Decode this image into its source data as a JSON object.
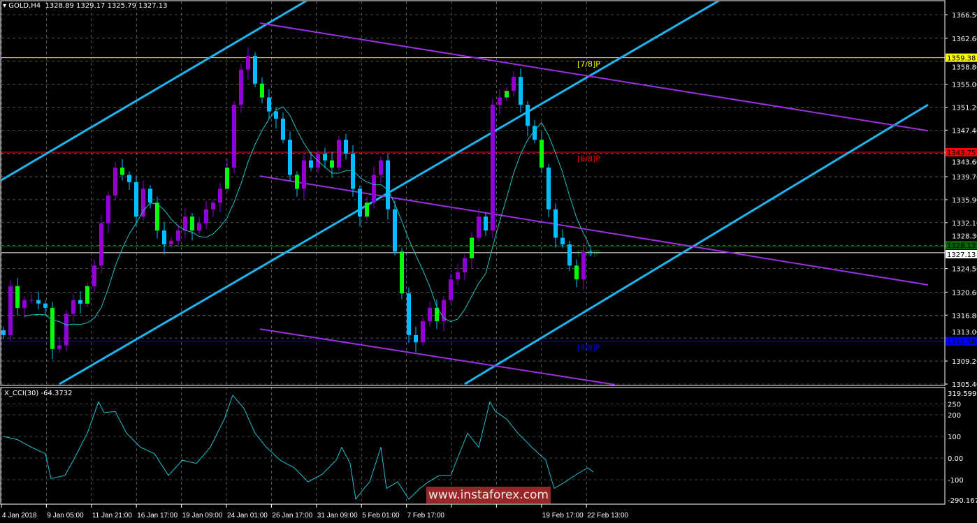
{
  "header": {
    "symbol": "GOLD,H4",
    "ohlc": "1328.89 1329.17 1325.79 1327.13"
  },
  "indicator": {
    "label": "X_CCI(30) -64.3732"
  },
  "watermark": "www.instaforex.com",
  "colors": {
    "background": "#000000",
    "bull": "#9400d3",
    "bear": "#00bfff",
    "wick": "#00ff00",
    "ma": "#20c0c0",
    "channel_up": "#1eb4f0",
    "channel_down": "#9b30e0",
    "cci": "#20c0d0",
    "grid": "#7a8a99"
  },
  "chart_data": [
    {
      "type": "candlestick",
      "title": "GOLD,H4",
      "price_ticks": [
        "1366.50",
        "1362.60",
        "1358.80",
        "1355.00",
        "1351.20",
        "1347.40",
        "1343.60",
        "1339.70",
        "1335.90",
        "1332.10",
        "1328.30",
        "1324.50",
        "1320.60",
        "1316.80",
        "1313.00",
        "1309.20",
        "1305.40"
      ],
      "ylim": [
        1305.4,
        1366.5
      ],
      "x_ticks": [
        "4 Jan 2018",
        "9 Jan 05:00",
        "11 Jan 21:00",
        "16 Jan 17:00",
        "19 Jan 09:00",
        "24 Jan 01:00",
        "26 Jan 17:00",
        "31 Jan 09:00",
        "5 Feb 01:00",
        "7 Feb 17:00",
        "",
        "",
        "19 Feb 17:00",
        "22 Feb 13:00"
      ],
      "closes": [
        1313.5,
        1321.6,
        1318,
        1319.3,
        1319.3,
        1318.7,
        1318,
        1311.2,
        1311.8,
        1317,
        1319.3,
        1318.7,
        1321.6,
        1325,
        1332,
        1336.6,
        1341.2,
        1340,
        1338.8,
        1333.1,
        1337.7,
        1335.4,
        1330.8,
        1328.5,
        1329.1,
        1330.8,
        1333.1,
        1330.8,
        1332,
        1334.3,
        1335.4,
        1337.7,
        1341.2,
        1351.6,
        1357.4,
        1359.7,
        1355.1,
        1352.8,
        1350.5,
        1349.3,
        1345.8,
        1340,
        1337.7,
        1342.4,
        1341.2,
        1343.5,
        1342.4,
        1341.2,
        1345.8,
        1343.5,
        1337.7,
        1333.1,
        1335.4,
        1340,
        1342.4,
        1334.3,
        1327.3,
        1320.4,
        1313.5,
        1312.3,
        1315.8,
        1318,
        1315.8,
        1319.3,
        1322.7,
        1323.9,
        1326.2,
        1329.6,
        1333.1,
        1330.8,
        1351.6,
        1352.8,
        1353.9,
        1356.2,
        1351.6,
        1348.1,
        1345.8,
        1341.2,
        1334.3,
        1329.6,
        1328.5,
        1325,
        1322.7,
        1327.3,
        1327.13
      ],
      "horizontal_levels": [
        {
          "label": "[7/8]P",
          "price": "1359.38",
          "color": "#ffff00"
        },
        {
          "label": "[6/8]P",
          "price": "1343.75",
          "color": "#ff0000"
        },
        {
          "label": "[5/8]P",
          "price": "1328.13",
          "color": "#006400"
        },
        {
          "label": "",
          "price": "1327.13",
          "color": "#ffffff"
        },
        {
          "label": "[4/8]P",
          "price": "1312.50",
          "color": "#0000ff"
        }
      ],
      "trend_lines": [
        {
          "color": "#1eb4f0",
          "p1": [
            -1.25,
            1339.0
          ],
          "p2": [
            108.75,
            1368.9
          ]
        },
        {
          "color": "#1eb4f0",
          "p1": [
            20,
            1305.4
          ],
          "p2": [
            256.25,
            1368.9
          ]
        },
        {
          "color": "#1eb4f0",
          "p1": [
            165,
            1305.4
          ],
          "p2": [
            330.75,
            1351.6
          ]
        },
        {
          "color": "#9b30e0",
          "p1": [
            91.75,
            1365.1
          ],
          "p2": [
            330.75,
            1347.3
          ]
        },
        {
          "color": "#9b30e0",
          "p1": [
            91.75,
            1339.8
          ],
          "p2": [
            330.75,
            1321.8
          ]
        },
        {
          "color": "#9b30e0",
          "p1": [
            91.75,
            1314.5
          ],
          "p2": [
            218.75,
            1305.3
          ]
        }
      ]
    },
    {
      "type": "line",
      "title": "X_CCI(30) -64.3732",
      "y_ticks": [
        "319.599",
        "250",
        "200",
        "100",
        "0.00",
        "-100",
        "-290.1675"
      ],
      "ylim": [
        -290.1675,
        319.599
      ],
      "points": [
        [
          0,
          100
        ],
        [
          5,
          85
        ],
        [
          10,
          50
        ],
        [
          15,
          20
        ],
        [
          17,
          -95
        ],
        [
          22,
          -80
        ],
        [
          25,
          -10
        ],
        [
          30,
          115
        ],
        [
          34,
          260
        ],
        [
          36,
          210
        ],
        [
          40,
          215
        ],
        [
          44,
          115
        ],
        [
          49,
          50
        ],
        [
          54,
          20
        ],
        [
          59,
          -80
        ],
        [
          64,
          -10
        ],
        [
          69,
          -25
        ],
        [
          74,
          50
        ],
        [
          79,
          180
        ],
        [
          82,
          290
        ],
        [
          86,
          230
        ],
        [
          90,
          115
        ],
        [
          94,
          50
        ],
        [
          99,
          -10
        ],
        [
          104,
          -45
        ],
        [
          109,
          -110
        ],
        [
          114,
          -75
        ],
        [
          119,
          -10
        ],
        [
          121,
          50
        ],
        [
          124,
          -25
        ],
        [
          126,
          -190
        ],
        [
          129,
          -140
        ],
        [
          131,
          -110
        ],
        [
          135,
          50
        ],
        [
          137,
          -140
        ],
        [
          141,
          -110
        ],
        [
          145,
          -190
        ],
        [
          149,
          -140
        ],
        [
          152,
          -110
        ],
        [
          156,
          -80
        ],
        [
          160,
          -80
        ],
        [
          164,
          50
        ],
        [
          166,
          115
        ],
        [
          170,
          50
        ],
        [
          174,
          260
        ],
        [
          176,
          215
        ],
        [
          180,
          180
        ],
        [
          184,
          115
        ],
        [
          189,
          50
        ],
        [
          194,
          -10
        ],
        [
          197,
          -140
        ],
        [
          201,
          -110
        ],
        [
          205,
          -75
        ],
        [
          209,
          -45
        ],
        [
          211,
          -64.37
        ]
      ]
    }
  ]
}
